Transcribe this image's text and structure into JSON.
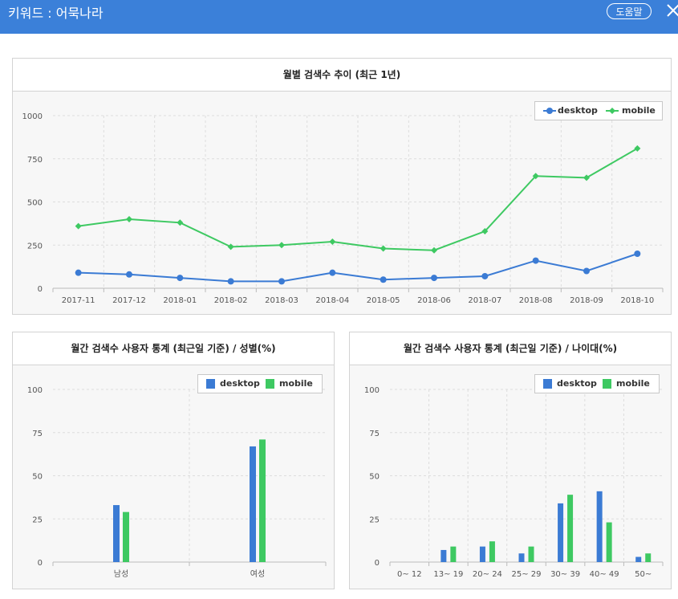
{
  "header": {
    "title": "키워드 : 어묵나라",
    "help_label": "도움말"
  },
  "colors": {
    "header_bg": "#3b80d9",
    "desktop": "#3b7bd4",
    "mobile": "#3ec962"
  },
  "legend": {
    "desktop": "desktop",
    "mobile": "mobile"
  },
  "chart_data": [
    {
      "type": "line",
      "title": "월별 검색수 추이 (최근 1년)",
      "categories": [
        "2017-11",
        "2017-12",
        "2018-01",
        "2018-02",
        "2018-03",
        "2018-04",
        "2018-05",
        "2018-06",
        "2018-07",
        "2018-08",
        "2018-09",
        "2018-10"
      ],
      "series": [
        {
          "name": "desktop",
          "values": [
            90,
            80,
            60,
            40,
            40,
            90,
            50,
            60,
            70,
            160,
            100,
            200
          ]
        },
        {
          "name": "mobile",
          "values": [
            360,
            400,
            380,
            240,
            250,
            270,
            230,
            220,
            330,
            650,
            640,
            810
          ]
        }
      ],
      "ylim": [
        0,
        1000
      ],
      "yticks": [
        0,
        250,
        500,
        750,
        1000
      ],
      "legend_position": "top-right",
      "grid": true
    },
    {
      "type": "bar",
      "title": "월간 검색수 사용자 통계 (최근일 기준) / 성별(%)",
      "categories": [
        "남성",
        "여성"
      ],
      "series": [
        {
          "name": "desktop",
          "values": [
            33,
            67
          ]
        },
        {
          "name": "mobile",
          "values": [
            29,
            71
          ]
        }
      ],
      "ylim": [
        0,
        100
      ],
      "yticks": [
        0,
        25,
        50,
        75,
        100
      ],
      "legend_position": "top-right",
      "grid": true
    },
    {
      "type": "bar",
      "title": "월간 검색수 사용자 통계 (최근일 기준) / 나이대(%)",
      "categories": [
        "0~ 12",
        "13~ 19",
        "20~ 24",
        "25~ 29",
        "30~ 39",
        "40~ 49",
        "50~"
      ],
      "series": [
        {
          "name": "desktop",
          "values": [
            0,
            7,
            9,
            5,
            34,
            41,
            3
          ]
        },
        {
          "name": "mobile",
          "values": [
            0,
            9,
            12,
            9,
            39,
            23,
            5
          ]
        }
      ],
      "ylim": [
        0,
        100
      ],
      "yticks": [
        0,
        25,
        50,
        75,
        100
      ],
      "legend_position": "top-right",
      "grid": true
    }
  ]
}
